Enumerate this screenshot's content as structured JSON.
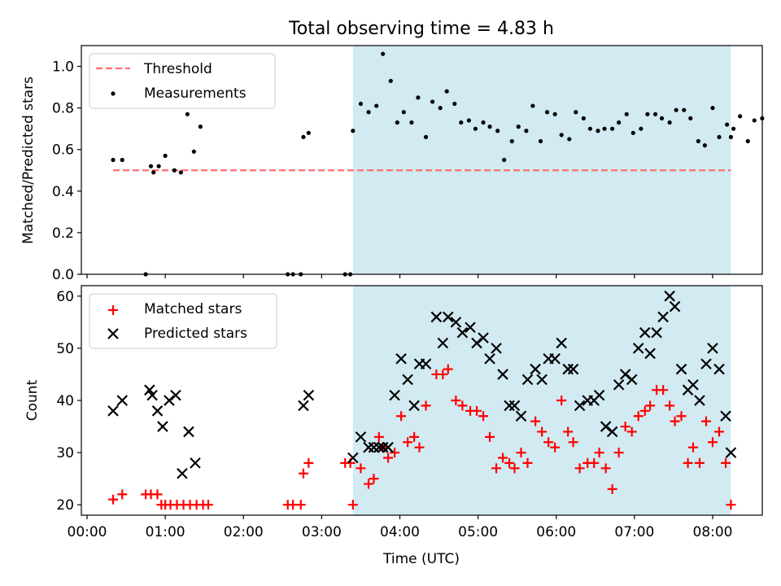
{
  "title": "Total observing time = 4.83 h",
  "colors": {
    "shade": "#add8e6",
    "threshold": "#ff6f6f",
    "measurement": "#000000",
    "matched": "#ff0000",
    "predicted": "#000000"
  },
  "chart_data": [
    {
      "type": "scatter",
      "panel": "top",
      "ylabel": "Matched/Predicted stars",
      "xlim": [
        "00:00",
        "08:40"
      ],
      "ylim": [
        0,
        1.1
      ],
      "yticks": [
        0.0,
        0.2,
        0.4,
        0.6,
        0.8,
        1.0
      ],
      "ytick_labels": [
        "0.0",
        "0.2",
        "0.4",
        "0.6",
        "0.8",
        "1.0"
      ],
      "shaded_span": [
        "03:24",
        "08:14"
      ],
      "legend": {
        "placement": "top-left",
        "entries": [
          "Threshold",
          "Measurements"
        ]
      },
      "threshold": {
        "name": "Threshold",
        "x": [
          "00:20",
          "08:14"
        ],
        "y": 0.5
      },
      "series": [
        {
          "name": "Measurements",
          "points": [
            [
              "00:20",
              0.55
            ],
            [
              "00:27",
              0.55
            ],
            [
              "00:45",
              0.0
            ],
            [
              "00:49",
              0.52
            ],
            [
              "00:51",
              0.49
            ],
            [
              "00:55",
              0.52
            ],
            [
              "01:00",
              0.57
            ],
            [
              "01:07",
              0.5
            ],
            [
              "01:12",
              0.49
            ],
            [
              "01:17",
              0.77
            ],
            [
              "01:22",
              0.59
            ],
            [
              "01:27",
              0.71
            ],
            [
              "02:34",
              0.0
            ],
            [
              "02:38",
              0.0
            ],
            [
              "02:44",
              0.0
            ],
            [
              "02:46",
              0.66
            ],
            [
              "02:50",
              0.68
            ],
            [
              "03:18",
              0.0
            ],
            [
              "03:22",
              0.0
            ],
            [
              "03:24",
              0.69
            ],
            [
              "03:30",
              0.82
            ],
            [
              "03:36",
              0.78
            ],
            [
              "03:42",
              0.81
            ],
            [
              "03:47",
              1.06
            ],
            [
              "03:53",
              0.93
            ],
            [
              "03:58",
              0.73
            ],
            [
              "04:03",
              0.78
            ],
            [
              "04:09",
              0.73
            ],
            [
              "04:14",
              0.85
            ],
            [
              "04:20",
              0.66
            ],
            [
              "04:25",
              0.83
            ],
            [
              "04:31",
              0.8
            ],
            [
              "04:36",
              0.88
            ],
            [
              "04:42",
              0.82
            ],
            [
              "04:47",
              0.73
            ],
            [
              "04:53",
              0.74
            ],
            [
              "04:58",
              0.7
            ],
            [
              "05:04",
              0.73
            ],
            [
              "05:09",
              0.71
            ],
            [
              "05:15",
              0.69
            ],
            [
              "05:20",
              0.55
            ],
            [
              "05:26",
              0.64
            ],
            [
              "05:31",
              0.71
            ],
            [
              "05:37",
              0.69
            ],
            [
              "05:42",
              0.81
            ],
            [
              "05:48",
              0.64
            ],
            [
              "05:53",
              0.78
            ],
            [
              "05:59",
              0.77
            ],
            [
              "06:04",
              0.67
            ],
            [
              "06:10",
              0.65
            ],
            [
              "06:15",
              0.78
            ],
            [
              "06:21",
              0.75
            ],
            [
              "06:26",
              0.7
            ],
            [
              "06:32",
              0.69
            ],
            [
              "06:37",
              0.7
            ],
            [
              "06:43",
              0.7
            ],
            [
              "06:48",
              0.73
            ],
            [
              "06:54",
              0.77
            ],
            [
              "06:59",
              0.68
            ],
            [
              "07:05",
              0.7
            ],
            [
              "07:10",
              0.77
            ],
            [
              "07:16",
              0.77
            ],
            [
              "07:21",
              0.75
            ],
            [
              "07:27",
              0.73
            ],
            [
              "07:32",
              0.79
            ],
            [
              "07:38",
              0.79
            ],
            [
              "07:43",
              0.75
            ],
            [
              "07:49",
              0.64
            ],
            [
              "07:54",
              0.62
            ],
            [
              "08:00",
              0.8
            ],
            [
              "08:05",
              0.66
            ],
            [
              "08:11",
              0.72
            ],
            [
              "08:16",
              0.7
            ],
            [
              "08:21",
              0.76
            ],
            [
              "08:27",
              0.64
            ],
            [
              "08:32",
              0.74
            ],
            [
              "08:38",
              0.75
            ],
            [
              "08:14",
              0.66
            ]
          ]
        }
      ]
    },
    {
      "type": "scatter",
      "panel": "bottom",
      "xlabel": "Time (UTC)",
      "ylabel": "Count",
      "xlim": [
        "00:00",
        "08:40"
      ],
      "ylim": [
        18,
        62
      ],
      "xticks": [
        "00:00",
        "01:00",
        "02:00",
        "03:00",
        "04:00",
        "05:00",
        "06:00",
        "07:00",
        "08:00"
      ],
      "yticks": [
        20,
        30,
        40,
        50,
        60
      ],
      "ytick_labels": [
        "20",
        "30",
        "40",
        "50",
        "60"
      ],
      "shaded_span": [
        "03:24",
        "08:14"
      ],
      "legend": {
        "placement": "top-left",
        "entries": [
          "Matched stars",
          "Predicted stars"
        ]
      },
      "series": [
        {
          "name": "Matched stars",
          "marker": "+",
          "points": [
            [
              "00:20",
              21
            ],
            [
              "00:27",
              22
            ],
            [
              "00:45",
              22
            ],
            [
              "00:49",
              22
            ],
            [
              "00:54",
              22
            ],
            [
              "00:57",
              20
            ],
            [
              "01:00",
              20
            ],
            [
              "01:04",
              20
            ],
            [
              "01:09",
              20
            ],
            [
              "01:14",
              20
            ],
            [
              "01:19",
              20
            ],
            [
              "01:24",
              20
            ],
            [
              "01:29",
              20
            ],
            [
              "01:33",
              20
            ],
            [
              "02:34",
              20
            ],
            [
              "02:38",
              20
            ],
            [
              "02:44",
              20
            ],
            [
              "02:46",
              26
            ],
            [
              "02:50",
              28
            ],
            [
              "03:18",
              28
            ],
            [
              "03:22",
              28
            ],
            [
              "03:24",
              20
            ],
            [
              "03:30",
              27
            ],
            [
              "03:36",
              24
            ],
            [
              "03:40",
              25
            ],
            [
              "03:44",
              33
            ],
            [
              "03:47",
              31
            ],
            [
              "03:51",
              29
            ],
            [
              "03:56",
              30
            ],
            [
              "04:01",
              37
            ],
            [
              "04:06",
              32
            ],
            [
              "04:11",
              33
            ],
            [
              "04:15",
              31
            ],
            [
              "04:20",
              39
            ],
            [
              "04:28",
              45
            ],
            [
              "04:33",
              45
            ],
            [
              "04:37",
              46
            ],
            [
              "04:43",
              40
            ],
            [
              "04:48",
              39
            ],
            [
              "04:54",
              38
            ],
            [
              "04:59",
              38
            ],
            [
              "05:04",
              37
            ],
            [
              "05:09",
              33
            ],
            [
              "05:14",
              27
            ],
            [
              "05:19",
              29
            ],
            [
              "05:24",
              28
            ],
            [
              "05:28",
              27
            ],
            [
              "05:33",
              30
            ],
            [
              "05:38",
              28
            ],
            [
              "05:44",
              36
            ],
            [
              "05:49",
              34
            ],
            [
              "05:54",
              32
            ],
            [
              "05:59",
              31
            ],
            [
              "06:04",
              40
            ],
            [
              "06:09",
              34
            ],
            [
              "06:13",
              32
            ],
            [
              "06:18",
              27
            ],
            [
              "06:24",
              28
            ],
            [
              "06:29",
              28
            ],
            [
              "06:33",
              30
            ],
            [
              "06:38",
              27
            ],
            [
              "06:43",
              23
            ],
            [
              "06:48",
              30
            ],
            [
              "06:53",
              35
            ],
            [
              "06:58",
              34
            ],
            [
              "07:03",
              37
            ],
            [
              "07:08",
              38
            ],
            [
              "07:12",
              39
            ],
            [
              "07:17",
              42
            ],
            [
              "07:22",
              42
            ],
            [
              "07:27",
              39
            ],
            [
              "07:31",
              36
            ],
            [
              "07:36",
              37
            ],
            [
              "07:41",
              28
            ],
            [
              "07:45",
              31
            ],
            [
              "07:50",
              28
            ],
            [
              "07:55",
              36
            ],
            [
              "08:00",
              32
            ],
            [
              "08:05",
              34
            ],
            [
              "08:10",
              28
            ],
            [
              "08:14",
              20
            ]
          ]
        },
        {
          "name": "Predicted stars",
          "marker": "x",
          "points": [
            [
              "00:20",
              38
            ],
            [
              "00:27",
              40
            ],
            [
              "00:48",
              42
            ],
            [
              "00:50",
              41
            ],
            [
              "00:54",
              38
            ],
            [
              "00:58",
              35
            ],
            [
              "01:03",
              40
            ],
            [
              "01:08",
              41
            ],
            [
              "01:13",
              26
            ],
            [
              "01:18",
              34
            ],
            [
              "01:23",
              28
            ],
            [
              "02:46",
              39
            ],
            [
              "02:50",
              41
            ],
            [
              "03:24",
              29
            ],
            [
              "03:30",
              33
            ],
            [
              "03:36",
              31
            ],
            [
              "03:40",
              31
            ],
            [
              "03:44",
              31
            ],
            [
              "03:47",
              31
            ],
            [
              "03:51",
              31
            ],
            [
              "03:56",
              41
            ],
            [
              "04:01",
              48
            ],
            [
              "04:06",
              44
            ],
            [
              "04:11",
              39
            ],
            [
              "04:15",
              47
            ],
            [
              "04:20",
              47
            ],
            [
              "04:28",
              56
            ],
            [
              "04:33",
              51
            ],
            [
              "04:37",
              56
            ],
            [
              "04:43",
              55
            ],
            [
              "04:48",
              53
            ],
            [
              "04:54",
              54
            ],
            [
              "04:59",
              51
            ],
            [
              "05:04",
              52
            ],
            [
              "05:09",
              48
            ],
            [
              "05:14",
              50
            ],
            [
              "05:19",
              45
            ],
            [
              "05:24",
              39
            ],
            [
              "05:28",
              39
            ],
            [
              "05:33",
              37
            ],
            [
              "05:38",
              44
            ],
            [
              "05:44",
              46
            ],
            [
              "05:49",
              44
            ],
            [
              "05:54",
              48
            ],
            [
              "05:59",
              48
            ],
            [
              "06:04",
              51
            ],
            [
              "06:09",
              46
            ],
            [
              "06:13",
              46
            ],
            [
              "06:18",
              39
            ],
            [
              "06:24",
              40
            ],
            [
              "06:29",
              40
            ],
            [
              "06:33",
              41
            ],
            [
              "06:38",
              35
            ],
            [
              "06:43",
              34
            ],
            [
              "06:48",
              43
            ],
            [
              "06:53",
              45
            ],
            [
              "06:58",
              44
            ],
            [
              "07:03",
              50
            ],
            [
              "07:08",
              53
            ],
            [
              "07:12",
              49
            ],
            [
              "07:17",
              53
            ],
            [
              "07:22",
              56
            ],
            [
              "07:27",
              60
            ],
            [
              "07:31",
              58
            ],
            [
              "07:36",
              46
            ],
            [
              "07:41",
              42
            ],
            [
              "07:45",
              43
            ],
            [
              "07:50",
              40
            ],
            [
              "07:55",
              47
            ],
            [
              "08:00",
              50
            ],
            [
              "08:05",
              46
            ],
            [
              "08:10",
              37
            ],
            [
              "08:14",
              30
            ]
          ]
        }
      ]
    }
  ]
}
